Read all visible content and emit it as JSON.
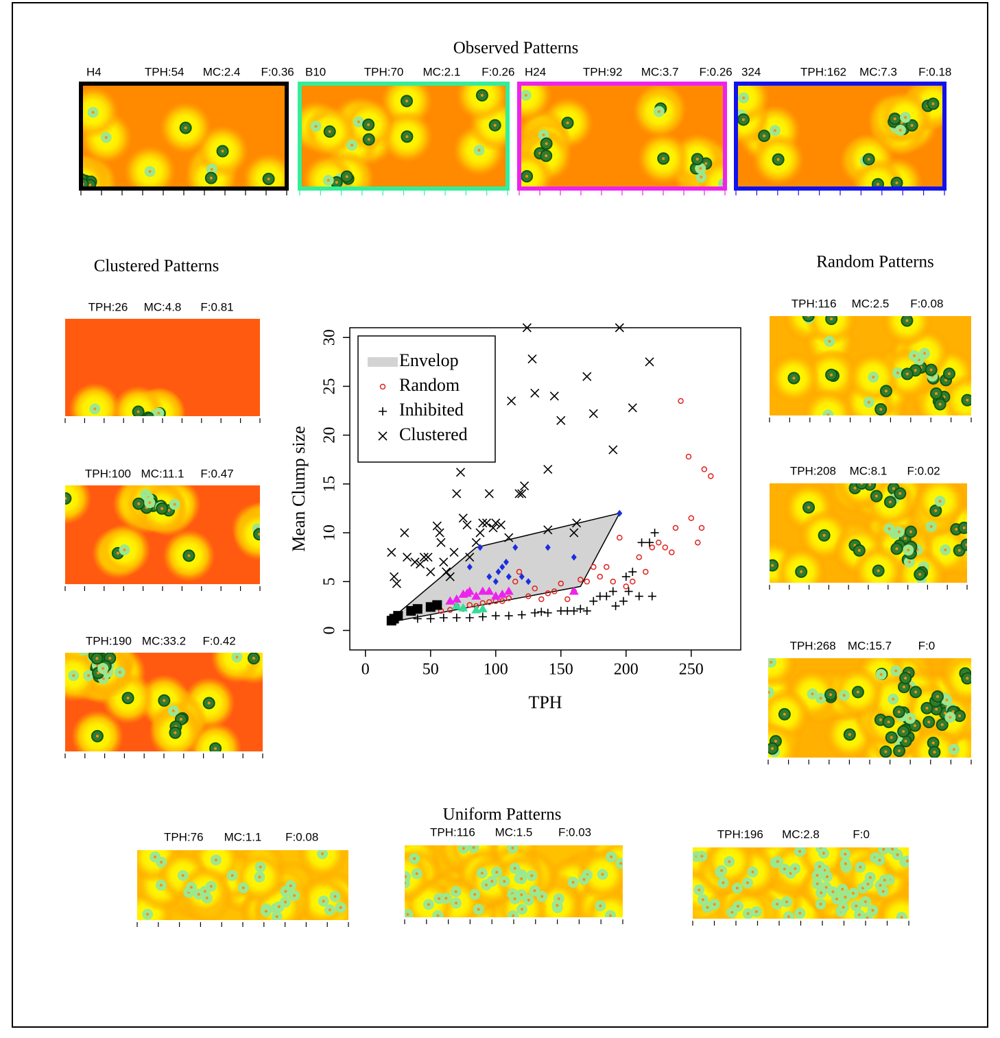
{
  "sections": [
    {
      "title": "Observed Patterns",
      "panels": [
        {
          "label": [
            "H4",
            "TPH:54",
            "MC:2.4",
            "F:0.36"
          ]
        },
        {
          "label": [
            "B10",
            "TPH:70",
            "MC:2.1",
            "F:0.26"
          ]
        },
        {
          "label": [
            "H24",
            "TPH:92",
            "MC:3.7",
            "F:0.26"
          ]
        },
        {
          "label": [
            "324",
            "TPH:162",
            "MC:7.3",
            "F:0.18"
          ]
        }
      ]
    },
    {
      "title": "Clustered Patterns",
      "panels": [
        {
          "label": [
            "TPH:26",
            "MC:4.8",
            "F:0.81"
          ]
        },
        {
          "label": [
            "TPH:100",
            "MC:11.1",
            "F:0.47"
          ]
        },
        {
          "label": [
            "TPH:190",
            "MC:33.2",
            "F:0.42"
          ]
        }
      ]
    },
    {
      "title": "Random Patterns",
      "panels": [
        {
          "label": [
            "TPH:116",
            "MC:2.5",
            "F:0.08"
          ]
        },
        {
          "label": [
            "TPH:208",
            "MC:8.1",
            "F:0.02"
          ]
        },
        {
          "label": [
            "TPH:268",
            "MC:15.7",
            "F:0"
          ]
        }
      ]
    },
    {
      "title": "Uniform Patterns",
      "panels": [
        {
          "label": [
            "TPH:76",
            "MC:1.1",
            "F:0.08"
          ]
        },
        {
          "label": [
            "TPH:116",
            "MC:1.5",
            "F:0.03"
          ]
        },
        {
          "label": [
            "TPH:196",
            "MC:2.8",
            "F:0"
          ]
        }
      ]
    }
  ],
  "chart_data": {
    "type": "scatter",
    "x_label": "TPH",
    "y_label": "Mean Clump size",
    "xlim": [
      -12,
      288
    ],
    "ylim": [
      -2,
      31
    ],
    "xticks": [
      0,
      50,
      100,
      150,
      200,
      250
    ],
    "yticks": [
      0,
      5,
      10,
      15,
      20,
      25,
      30
    ],
    "legend": "upper left",
    "series": [
      {
        "name": "Envelop",
        "marker": "polygon",
        "color": "#d3d3d3",
        "x": [
          20,
          85,
          195,
          165,
          25
        ],
        "values": [
          1.2,
          8.5,
          12,
          4.5,
          1
        ]
      },
      {
        "name": "Random",
        "marker": "o",
        "color": "#e0201b",
        "x": [
          58,
          65,
          70,
          75,
          80,
          85,
          90,
          95,
          100,
          105,
          110,
          115,
          118,
          125,
          130,
          135,
          140,
          145,
          150,
          155,
          160,
          165,
          170,
          175,
          180,
          185,
          190,
          195,
          200,
          205,
          210,
          215,
          220,
          225,
          230,
          235,
          238,
          242,
          248,
          250,
          255,
          258,
          260,
          265
        ],
        "values": [
          2,
          2.1,
          2.5,
          2.2,
          2.6,
          2.5,
          2.8,
          2.9,
          3,
          3,
          3.3,
          5,
          6,
          3.5,
          4.3,
          3.2,
          3.8,
          4,
          4.8,
          3.2,
          4,
          5.2,
          5,
          6.5,
          5.5,
          6.5,
          5,
          9.5,
          4.5,
          5,
          7.5,
          6,
          8.5,
          9,
          8.5,
          8,
          10.5,
          23.5,
          17.8,
          11.5,
          9,
          10.5,
          16.5,
          15.8
        ]
      },
      {
        "name": "Inhibited",
        "marker": "+",
        "color": "#000000",
        "x": [
          40,
          50,
          60,
          70,
          80,
          90,
          100,
          110,
          120,
          130,
          135,
          140,
          150,
          155,
          160,
          165,
          170,
          175,
          180,
          185,
          190,
          192,
          198,
          200,
          202,
          205,
          210,
          212,
          218,
          220,
          222
        ],
        "values": [
          1.2,
          1.2,
          1.3,
          1.3,
          1.3,
          1.4,
          1.5,
          1.5,
          1.6,
          1.8,
          1.9,
          1.8,
          2,
          2,
          2,
          2.2,
          2,
          3,
          3.5,
          3.5,
          4,
          2.5,
          3,
          5.5,
          4,
          6,
          3.5,
          9,
          9,
          3.5,
          10
        ]
      },
      {
        "name": "Clustered",
        "marker": "x",
        "color": "#000000",
        "x": [
          20,
          22,
          24,
          30,
          32,
          38,
          42,
          45,
          48,
          50,
          55,
          57,
          58,
          60,
          62,
          65,
          68,
          70,
          73,
          75,
          78,
          80,
          85,
          88,
          90,
          93,
          95,
          98,
          100,
          104,
          110,
          112,
          118,
          120,
          122,
          124,
          128,
          130,
          140,
          140,
          145,
          150,
          160,
          162,
          170,
          175,
          190,
          195,
          205,
          218
        ],
        "values": [
          8,
          5.5,
          4.8,
          10,
          7.5,
          7,
          6.8,
          7.5,
          7.5,
          6,
          10.7,
          10,
          9,
          7,
          6,
          5.5,
          8,
          14,
          16.2,
          11.5,
          10.8,
          7.5,
          9,
          10,
          11,
          11,
          14,
          10.5,
          11,
          10.8,
          9.5,
          23.5,
          14,
          14,
          14.8,
          31,
          27.8,
          24.3,
          16.5,
          10.3,
          24,
          21.5,
          10,
          11,
          26,
          22.2,
          18.5,
          31,
          22.8,
          27.5
        ]
      },
      {
        "marker": "s",
        "color": "#000000",
        "x": [
          20,
          22,
          25,
          35,
          40,
          50,
          55
        ],
        "values": [
          1,
          1.2,
          1.5,
          2,
          2.2,
          2.4,
          2.6
        ]
      },
      {
        "marker": "^",
        "color": "#33dd99",
        "x": [
          70,
          75,
          85,
          90
        ],
        "values": [
          2.5,
          2.3,
          2.1,
          2.2
        ]
      },
      {
        "marker": "^",
        "color": "#ee22ee",
        "x": [
          65,
          70,
          75,
          78,
          80,
          85,
          90,
          95,
          100,
          105,
          110,
          160
        ],
        "values": [
          3,
          3.2,
          3.7,
          3.8,
          4,
          3.5,
          4,
          4,
          3.5,
          3.7,
          4,
          4
        ]
      },
      {
        "marker": "d",
        "color": "#1a2ee0",
        "x": [
          80,
          88,
          95,
          100,
          102,
          105,
          108,
          110,
          115,
          120,
          125,
          140,
          160,
          195
        ],
        "values": [
          6.5,
          8.5,
          5.5,
          5,
          6,
          6.5,
          7,
          5.5,
          8.5,
          5.5,
          5,
          8.5,
          7.5,
          12
        ]
      }
    ]
  }
}
